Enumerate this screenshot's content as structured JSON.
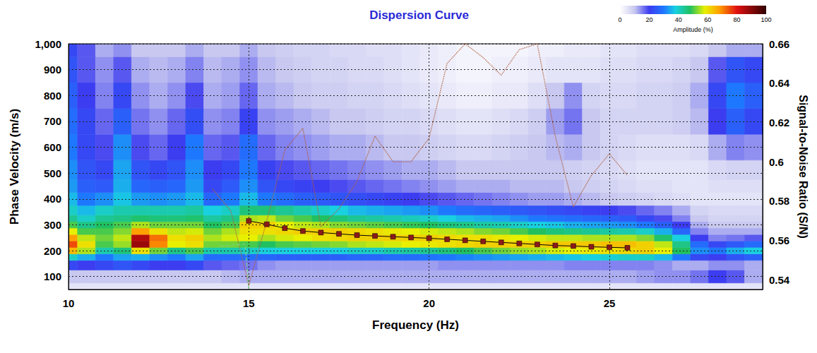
{
  "chart_data": {
    "type": "heatmap",
    "title": "Dispersion Curve",
    "x_label": "Frequency (Hz)",
    "y_label": "Phase Velocity (m/s)",
    "y2_label": "Signal-to-Noise Ratio (S/N)",
    "xlim": [
      10,
      29.25
    ],
    "xticks": [
      10,
      15,
      20,
      25
    ],
    "ylim": [
      50,
      1000
    ],
    "yticks": [
      100,
      200,
      300,
      400,
      500,
      600,
      700,
      800,
      900,
      {
        "value": 1000,
        "label": "1,000"
      }
    ],
    "y2lim": [
      0.535,
      0.66
    ],
    "y2ticks": [
      0.54,
      0.56,
      0.58,
      0.6,
      0.62,
      0.64,
      0.66
    ],
    "grid": true,
    "amplitude": {
      "x": [
        10,
        10.5,
        11,
        11.5,
        12,
        12.5,
        13,
        13.5,
        14,
        14.5,
        15,
        15.5,
        16,
        16.5,
        17,
        17.5,
        18,
        18.5,
        19,
        19.5,
        20,
        20.5,
        21,
        21.5,
        22,
        22.5,
        23,
        23.5,
        24,
        24.5,
        25,
        25.5,
        26,
        26.5,
        27,
        27.5,
        28,
        28.5,
        29
      ],
      "y": [
        50,
        100,
        150,
        175,
        200,
        225,
        250,
        275,
        300,
        325,
        350,
        400,
        450,
        500,
        600,
        700,
        800,
        900,
        1000
      ],
      "cells": [
        [
          5,
          5,
          5,
          5,
          5,
          5,
          5,
          5,
          5,
          5,
          5,
          5,
          5,
          5,
          5,
          5,
          5,
          5,
          5,
          5,
          5,
          5,
          5,
          5,
          5,
          5,
          5,
          5,
          5,
          5,
          5,
          5,
          5,
          5,
          5,
          5,
          5,
          5,
          5
        ],
        [
          10,
          10,
          10,
          10,
          10,
          10,
          10,
          10,
          10,
          11,
          12,
          12,
          12,
          12,
          12,
          12,
          12,
          12,
          12,
          12,
          12,
          12,
          12,
          12,
          12,
          12,
          12,
          12,
          12,
          12,
          12,
          12,
          13,
          14,
          14,
          16,
          20,
          18,
          12
        ],
        [
          22,
          20,
          22,
          24,
          22,
          20,
          20,
          22,
          18,
          17,
          16,
          14,
          13,
          13,
          13,
          13,
          13,
          13,
          13,
          13,
          13,
          14,
          14,
          14,
          14,
          14,
          14,
          14,
          15,
          15,
          15,
          15,
          15,
          14,
          12,
          12,
          14,
          14,
          12
        ],
        [
          40,
          35,
          30,
          34,
          35,
          32,
          30,
          34,
          28,
          28,
          28,
          27,
          26,
          26,
          26,
          26,
          27,
          27,
          28,
          28,
          29,
          30,
          31,
          32,
          33,
          34,
          35,
          36,
          37,
          38,
          39,
          40,
          40,
          36,
          30,
          22,
          20,
          24,
          26
        ],
        [
          65,
          55,
          42,
          46,
          60,
          52,
          45,
          50,
          42,
          42,
          40,
          38,
          38,
          38,
          38,
          38,
          40,
          40,
          42,
          43,
          44,
          46,
          48,
          50,
          52,
          54,
          55,
          57,
          58,
          59,
          60,
          61,
          62,
          58,
          48,
          32,
          30,
          35,
          38
        ],
        [
          75,
          60,
          50,
          54,
          88,
          70,
          58,
          60,
          52,
          52,
          50,
          48,
          50,
          51,
          52,
          53,
          55,
          56,
          57,
          58,
          59,
          60,
          61,
          62,
          62,
          62,
          62,
          63,
          63,
          63,
          64,
          64,
          62,
          56,
          45,
          28,
          22,
          25,
          28
        ],
        [
          68,
          56,
          52,
          56,
          85,
          72,
          60,
          62,
          55,
          57,
          58,
          55,
          57,
          58,
          60,
          61,
          62,
          62,
          62,
          62,
          62,
          61,
          60,
          60,
          59,
          58,
          57,
          56,
          56,
          55,
          55,
          55,
          53,
          47,
          38,
          20,
          15,
          16,
          18
        ],
        [
          58,
          50,
          50,
          53,
          68,
          60,
          56,
          57,
          52,
          55,
          60,
          60,
          61,
          62,
          62,
          62,
          61,
          60,
          59,
          58,
          57,
          56,
          55,
          53,
          52,
          50,
          48,
          46,
          45,
          44,
          43,
          42,
          40,
          35,
          27,
          15,
          12,
          12,
          12
        ],
        [
          50,
          45,
          48,
          50,
          55,
          52,
          52,
          52,
          48,
          50,
          62,
          62,
          58,
          56,
          55,
          53,
          52,
          51,
          50,
          49,
          48,
          46,
          45,
          43,
          42,
          40,
          38,
          37,
          35,
          34,
          33,
          32,
          30,
          26,
          20,
          12,
          10,
          10,
          10
        ],
        [
          44,
          40,
          44,
          45,
          47,
          46,
          46,
          47,
          43,
          45,
          55,
          56,
          52,
          50,
          48,
          46,
          44,
          43,
          42,
          41,
          40,
          38,
          36,
          35,
          34,
          32,
          30,
          29,
          28,
          27,
          26,
          25,
          22,
          19,
          15,
          10,
          8,
          8,
          8
        ],
        [
          40,
          36,
          40,
          42,
          42,
          42,
          42,
          43,
          38,
          40,
          46,
          46,
          44,
          42,
          40,
          38,
          36,
          35,
          34,
          33,
          32,
          30,
          28,
          27,
          26,
          25,
          24,
          23,
          22,
          21,
          20,
          19,
          17,
          15,
          12,
          8,
          7,
          7,
          7
        ],
        [
          36,
          30,
          32,
          37,
          33,
          32,
          33,
          36,
          27,
          30,
          36,
          30,
          28,
          26,
          25,
          24,
          23,
          22,
          21,
          20,
          19,
          18,
          17,
          16,
          15,
          14,
          13,
          13,
          12,
          11,
          10,
          9,
          8,
          7,
          6,
          5,
          5,
          5,
          5
        ],
        [
          33,
          26,
          25,
          35,
          27,
          26,
          27,
          33,
          22,
          25,
          32,
          24,
          22,
          21,
          20,
          19,
          18,
          17,
          16,
          15,
          14,
          13,
          12,
          12,
          12,
          11,
          11,
          11,
          10,
          9,
          8,
          7,
          6,
          6,
          5,
          5,
          6,
          6,
          6
        ],
        [
          32,
          24,
          22,
          34,
          24,
          22,
          24,
          32,
          20,
          22,
          30,
          21,
          19,
          18,
          17,
          16,
          15,
          14,
          13,
          12,
          12,
          11,
          10,
          10,
          10,
          10,
          10,
          10,
          9,
          8,
          7,
          6,
          5,
          5,
          5,
          5,
          7,
          8,
          8
        ],
        [
          30,
          22,
          19,
          32,
          19,
          17,
          20,
          30,
          17,
          18,
          28,
          17,
          15,
          14,
          13,
          12,
          12,
          11,
          10,
          10,
          9,
          8,
          7,
          7,
          8,
          9,
          10,
          11,
          12,
          10,
          8,
          7,
          6,
          6,
          6,
          7,
          12,
          15,
          14
        ],
        [
          28,
          22,
          17,
          26,
          16,
          14,
          17,
          23,
          14,
          15,
          21,
          14,
          13,
          12,
          11,
          10,
          10,
          9,
          8,
          8,
          7,
          6,
          5,
          5,
          6,
          7,
          9,
          13,
          16,
          10,
          8,
          8,
          8,
          8,
          9,
          11,
          20,
          26,
          22
        ],
        [
          26,
          20,
          15,
          22,
          14,
          12,
          14,
          19,
          12,
          13,
          17,
          12,
          11,
          10,
          9,
          9,
          8,
          8,
          7,
          6,
          5,
          4,
          3,
          3,
          4,
          4,
          6,
          10,
          14,
          8,
          7,
          7,
          8,
          8,
          9,
          12,
          22,
          30,
          26
        ],
        [
          24,
          18,
          14,
          18,
          12,
          11,
          12,
          15,
          11,
          12,
          14,
          11,
          10,
          9,
          8,
          8,
          7,
          7,
          6,
          5,
          4,
          3,
          2,
          2,
          3,
          3,
          4,
          5,
          5,
          5,
          6,
          6,
          7,
          7,
          8,
          10,
          18,
          24,
          22
        ],
        [
          22,
          18,
          12,
          14,
          10,
          10,
          10,
          12,
          10,
          10,
          12,
          10,
          9,
          8,
          8,
          7,
          7,
          6,
          6,
          5,
          4,
          3,
          2,
          2,
          2,
          2,
          3,
          3,
          4,
          4,
          5,
          5,
          6,
          6,
          6,
          7,
          10,
          12,
          12
        ]
      ]
    },
    "colorbar": {
      "label": "Amplitude (%)",
      "range": [
        0,
        100
      ],
      "ticks": [
        0,
        20,
        40,
        60,
        80,
        100
      ]
    },
    "series": [
      {
        "type": "line",
        "marker": "square",
        "line_style": "solid",
        "color": "#8b1a1a",
        "x": [
          15,
          15.5,
          16,
          16.5,
          17,
          17.5,
          18,
          18.5,
          19,
          19.5,
          20,
          20.5,
          21,
          21.5,
          22,
          22.5,
          23,
          23.5,
          24,
          24.5,
          25,
          25.5
        ],
        "values": [
          315,
          302,
          287,
          276,
          270,
          265,
          260,
          257,
          254,
          251,
          248,
          244,
          240,
          236,
          232,
          228,
          224,
          220,
          218,
          215,
          213,
          211
        ]
      },
      {
        "type": "line",
        "axis": "y2",
        "line_style": "dotted",
        "color": "#b0603c",
        "x": [
          14,
          14.5,
          15,
          15.5,
          16,
          16.5,
          17,
          17.5,
          18,
          18.5,
          19,
          19.5,
          20,
          20.5,
          21,
          21.5,
          22,
          22.5,
          23,
          23.5,
          24,
          24.5,
          25,
          25.5
        ],
        "values": [
          0.586,
          0.575,
          0.537,
          0.57,
          0.606,
          0.617,
          0.567,
          0.576,
          0.59,
          0.613,
          0.6,
          0.6,
          0.612,
          0.65,
          0.66,
          0.653,
          0.644,
          0.657,
          0.66,
          0.613,
          0.577,
          0.593,
          0.604,
          0.593
        ]
      },
      {
        "type": "line",
        "axis": "y2",
        "line_style": "dashed",
        "color": "#7ccf7c",
        "x": [
          14.2,
          14.9,
          15
        ],
        "values": [
          0.557,
          0.558,
          0.535
        ]
      }
    ]
  }
}
